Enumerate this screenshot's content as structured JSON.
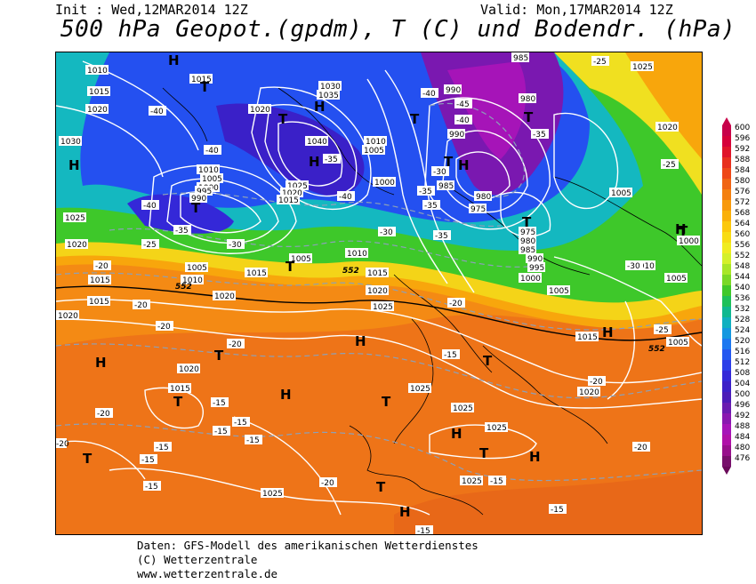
{
  "header": {
    "init": "Init : Wed,12MAR2014 12Z",
    "valid": "Valid: Mon,17MAR2014 12Z",
    "title": "500 hPa Geopot.(gpdm), T (C) und Bodendr. (hPa)"
  },
  "credits": [
    "Daten: GFS-Modell des amerikanischen Wetterdienstes",
    "(C) Wetterzentrale",
    "www.wetterzentrale.de"
  ],
  "legend": {
    "labels": [
      "600",
      "596",
      "592",
      "588",
      "584",
      "580",
      "576",
      "572",
      "568",
      "564",
      "560",
      "556",
      "552",
      "548",
      "544",
      "540",
      "536",
      "532",
      "528",
      "524",
      "520",
      "516",
      "512",
      "508",
      "504",
      "500",
      "496",
      "492",
      "488",
      "484",
      "480",
      "476"
    ],
    "colors": [
      "#c8004a",
      "#d6003a",
      "#e0142a",
      "#e8301e",
      "#ee4818",
      "#f06414",
      "#f48010",
      "#f89a0c",
      "#fab00a",
      "#fcc80c",
      "#f8dc14",
      "#f0ec20",
      "#d4f02a",
      "#a8e628",
      "#7ad826",
      "#40c82a",
      "#1ec05a",
      "#10b890",
      "#10b0c0",
      "#1498e0",
      "#1c78f0",
      "#2458f0",
      "#2c3ee8",
      "#3428d8",
      "#3c20c8",
      "#4c1cb8",
      "#6a1cb0",
      "#8a18b0",
      "#a614b8",
      "#b010a8",
      "#98108c",
      "#78106c"
    ],
    "arrow_top_color": "#c8004a",
    "arrow_bottom_color": "#6a0a5a"
  },
  "map": {
    "pressure_labels": [
      "1010",
      "1015",
      "1020",
      "1030",
      "1025",
      "1005",
      "1000",
      "995",
      "990",
      "1035",
      "1040",
      "980",
      "975",
      "985"
    ],
    "temp_labels": [
      "-40",
      "-35",
      "-30",
      "-25",
      "-20",
      "-15",
      "-45"
    ],
    "contour_label_552": "552",
    "highs": "H",
    "lows": "T"
  }
}
